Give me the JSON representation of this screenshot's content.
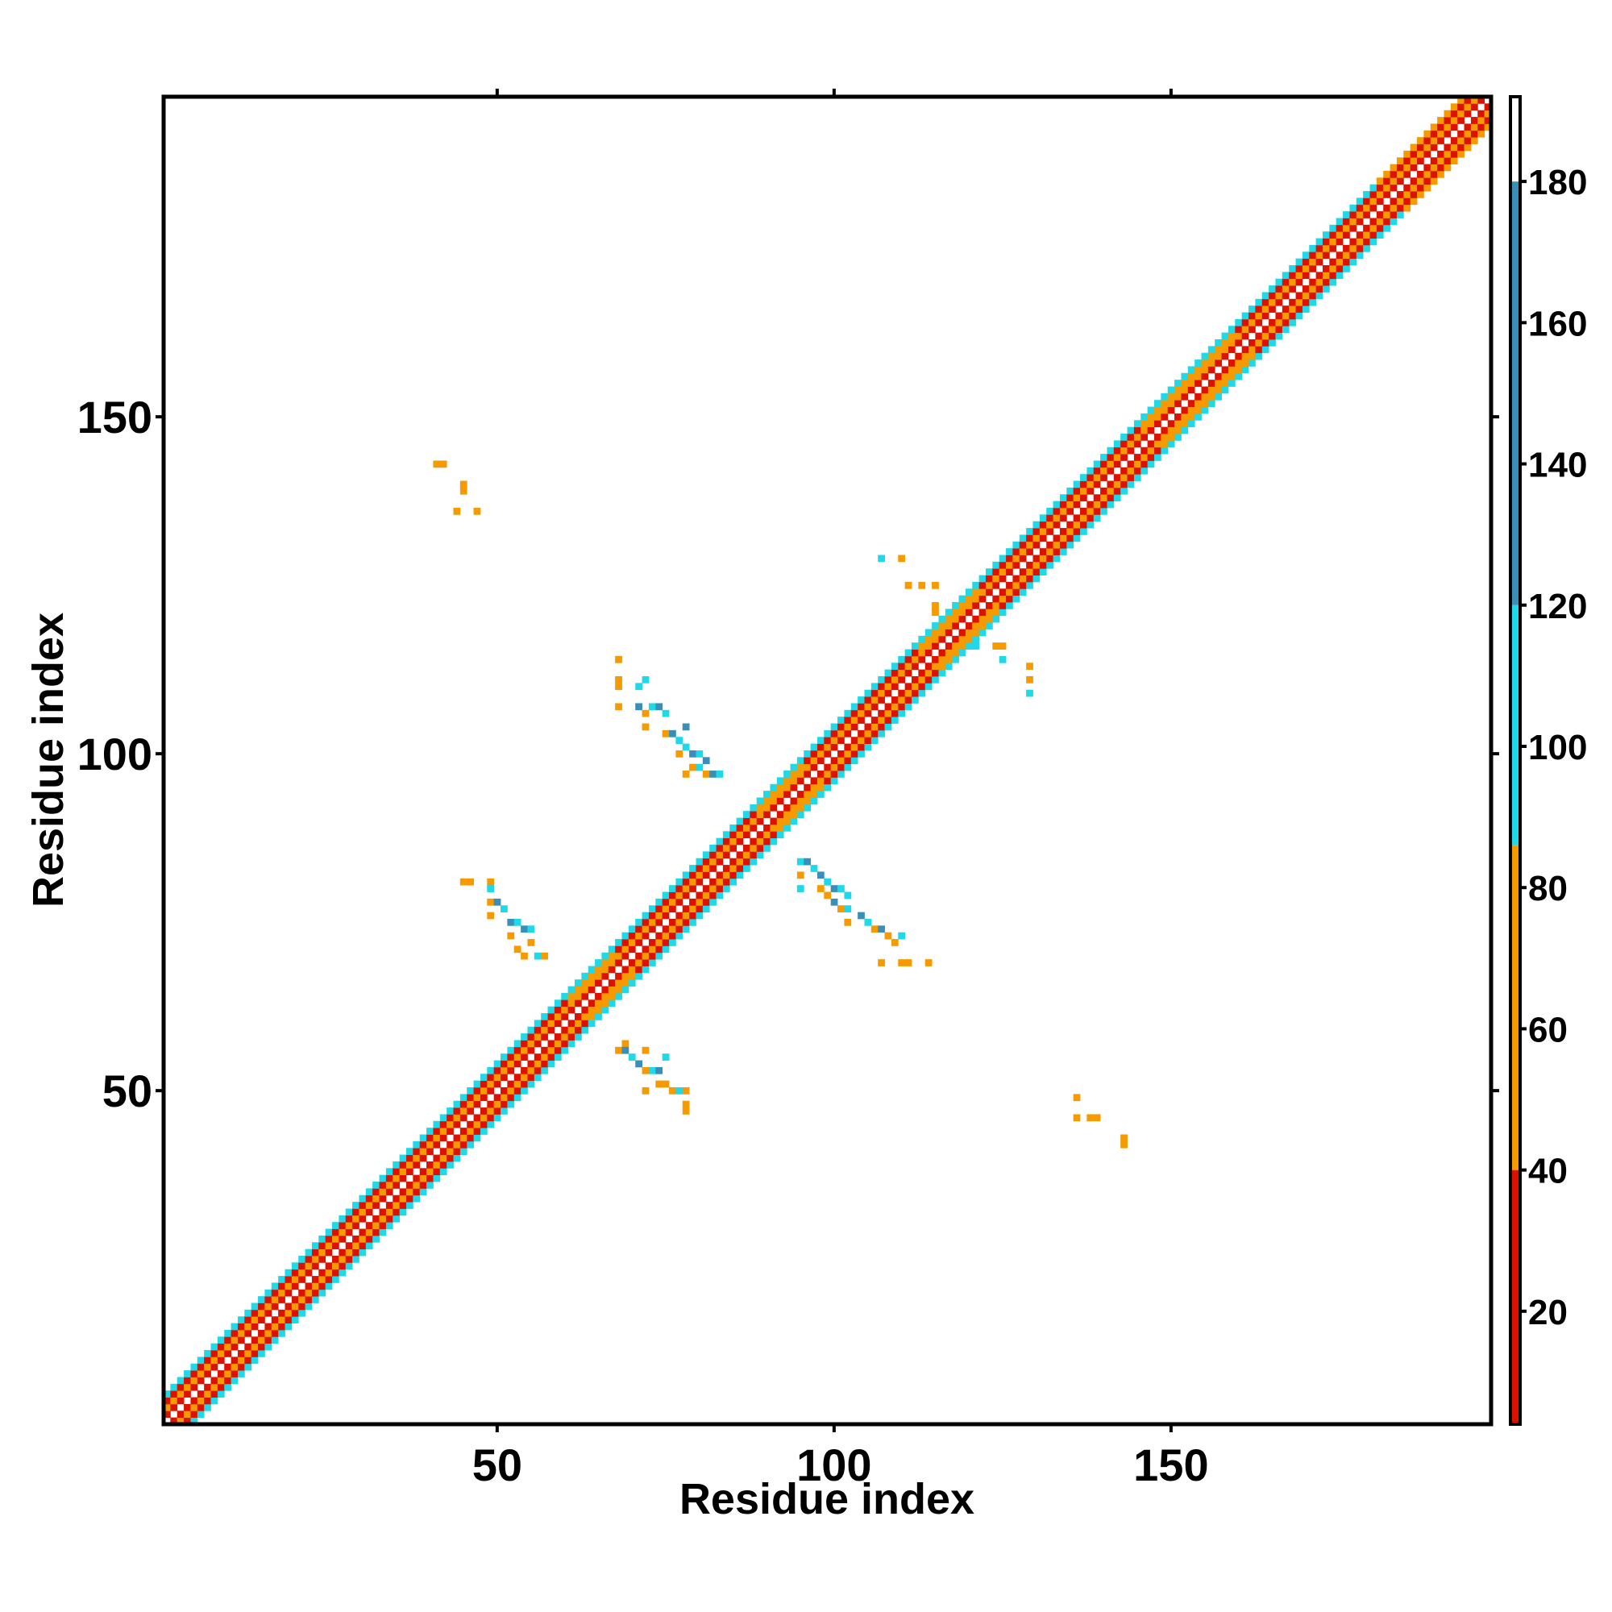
{
  "chart_data": {
    "type": "heatmap",
    "title": "",
    "xlabel": "Residue index",
    "ylabel": "Residue index",
    "xlim": [
      1,
      197
    ],
    "ylim": [
      1,
      197
    ],
    "x_ticks": [
      "50",
      "100",
      "150"
    ],
    "y_ticks": [
      "50",
      "100",
      "150"
    ],
    "colorbar": {
      "ticks": [
        "20",
        "40",
        "60",
        "80",
        "100",
        "120",
        "140",
        "160",
        "180"
      ],
      "range": [
        4,
        192
      ],
      "bands": [
        {
          "from": 4,
          "to": 40,
          "color": "#dd1100"
        },
        {
          "from": 40,
          "to": 86,
          "color": "#f59a00"
        },
        {
          "from": 86,
          "to": 120,
          "color": "#1fd8e8"
        },
        {
          "from": 120,
          "to": 180,
          "color": "#3a8fb8"
        },
        {
          "from": 180,
          "to": 192,
          "color": "#ffffff"
        }
      ]
    },
    "colors": {
      "red": "#dd1100",
      "dark_orange": "#e8650a",
      "orange": "#f59a00",
      "cyan": "#1fd8e8",
      "steel_blue": "#3a8fb8"
    },
    "diagonal_band": {
      "description_cells": "residue pairs with |i-j| from 1 to 4 along the full diagonal",
      "offset_colors": [
        "red",
        "orange",
        "red",
        "cyan"
      ]
    },
    "off_diagonal_contacts": [
      {
        "x": 41,
        "y": 143,
        "c": "orange"
      },
      {
        "x": 42,
        "y": 143,
        "c": "orange"
      },
      {
        "x": 45,
        "y": 140,
        "c": "orange"
      },
      {
        "x": 45,
        "y": 139,
        "c": "orange"
      },
      {
        "x": 44,
        "y": 136,
        "c": "orange"
      },
      {
        "x": 47,
        "y": 136,
        "c": "orange"
      },
      {
        "x": 68,
        "y": 114,
        "c": "orange"
      },
      {
        "x": 68,
        "y": 111,
        "c": "orange"
      },
      {
        "x": 68,
        "y": 110,
        "c": "orange"
      },
      {
        "x": 68,
        "y": 107,
        "c": "orange"
      },
      {
        "x": 71,
        "y": 110,
        "c": "cyan"
      },
      {
        "x": 72,
        "y": 111,
        "c": "cyan"
      },
      {
        "x": 71,
        "y": 107,
        "c": "steel_blue"
      },
      {
        "x": 72,
        "y": 106,
        "c": "orange"
      },
      {
        "x": 73,
        "y": 107,
        "c": "cyan"
      },
      {
        "x": 74,
        "y": 107,
        "c": "steel_blue"
      },
      {
        "x": 75,
        "y": 106,
        "c": "cyan"
      },
      {
        "x": 72,
        "y": 104,
        "c": "orange"
      },
      {
        "x": 75,
        "y": 103,
        "c": "orange"
      },
      {
        "x": 76,
        "y": 103,
        "c": "steel_blue"
      },
      {
        "x": 77,
        "y": 102,
        "c": "cyan"
      },
      {
        "x": 78,
        "y": 104,
        "c": "steel_blue"
      },
      {
        "x": 77,
        "y": 100,
        "c": "orange"
      },
      {
        "x": 78,
        "y": 101,
        "c": "cyan"
      },
      {
        "x": 79,
        "y": 100,
        "c": "steel_blue"
      },
      {
        "x": 80,
        "y": 100,
        "c": "cyan"
      },
      {
        "x": 81,
        "y": 99,
        "c": "steel_blue"
      },
      {
        "x": 79,
        "y": 98,
        "c": "orange"
      },
      {
        "x": 80,
        "y": 98,
        "c": "cyan"
      },
      {
        "x": 81,
        "y": 97,
        "c": "orange"
      },
      {
        "x": 82,
        "y": 97,
        "c": "steel_blue"
      },
      {
        "x": 83,
        "y": 97,
        "c": "cyan"
      },
      {
        "x": 78,
        "y": 97,
        "c": "orange"
      },
      {
        "x": 45,
        "y": 81,
        "c": "orange"
      },
      {
        "x": 46,
        "y": 81,
        "c": "orange"
      },
      {
        "x": 49,
        "y": 81,
        "c": "orange"
      },
      {
        "x": 49,
        "y": 80,
        "c": "cyan"
      },
      {
        "x": 49,
        "y": 78,
        "c": "orange"
      },
      {
        "x": 50,
        "y": 78,
        "c": "steel_blue"
      },
      {
        "x": 51,
        "y": 77,
        "c": "cyan"
      },
      {
        "x": 49,
        "y": 76,
        "c": "orange"
      },
      {
        "x": 52,
        "y": 75,
        "c": "steel_blue"
      },
      {
        "x": 53,
        "y": 75,
        "c": "cyan"
      },
      {
        "x": 54,
        "y": 74,
        "c": "steel_blue"
      },
      {
        "x": 55,
        "y": 74,
        "c": "cyan"
      },
      {
        "x": 52,
        "y": 73,
        "c": "orange"
      },
      {
        "x": 55,
        "y": 72,
        "c": "orange"
      },
      {
        "x": 54,
        "y": 70,
        "c": "orange"
      },
      {
        "x": 56,
        "y": 70,
        "c": "cyan"
      },
      {
        "x": 57,
        "y": 70,
        "c": "orange"
      },
      {
        "x": 53,
        "y": 71,
        "c": "orange"
      },
      {
        "x": 69,
        "y": 57,
        "c": "orange"
      },
      {
        "x": 68,
        "y": 56,
        "c": "orange"
      },
      {
        "x": 69,
        "y": 56,
        "c": "steel_blue"
      },
      {
        "x": 70,
        "y": 55,
        "c": "cyan"
      },
      {
        "x": 72,
        "y": 56,
        "c": "orange"
      },
      {
        "x": 71,
        "y": 54,
        "c": "steel_blue"
      },
      {
        "x": 72,
        "y": 53,
        "c": "orange"
      },
      {
        "x": 73,
        "y": 53,
        "c": "cyan"
      },
      {
        "x": 74,
        "y": 53,
        "c": "steel_blue"
      },
      {
        "x": 74,
        "y": 51,
        "c": "orange"
      },
      {
        "x": 75,
        "y": 51,
        "c": "orange"
      },
      {
        "x": 72,
        "y": 50,
        "c": "orange"
      },
      {
        "x": 76,
        "y": 50,
        "c": "orange"
      },
      {
        "x": 77,
        "y": 50,
        "c": "cyan"
      },
      {
        "x": 78,
        "y": 50,
        "c": "orange"
      },
      {
        "x": 78,
        "y": 48,
        "c": "orange"
      },
      {
        "x": 78,
        "y": 47,
        "c": "orange"
      },
      {
        "x": 75,
        "y": 55,
        "c": "cyan"
      },
      {
        "x": 95,
        "y": 84,
        "c": "cyan"
      },
      {
        "x": 96,
        "y": 84,
        "c": "steel_blue"
      },
      {
        "x": 97,
        "y": 83,
        "c": "cyan"
      },
      {
        "x": 95,
        "y": 82,
        "c": "orange"
      },
      {
        "x": 98,
        "y": 82,
        "c": "steel_blue"
      },
      {
        "x": 99,
        "y": 81,
        "c": "cyan"
      },
      {
        "x": 95,
        "y": 80,
        "c": "cyan"
      },
      {
        "x": 98,
        "y": 80,
        "c": "orange"
      },
      {
        "x": 100,
        "y": 80,
        "c": "steel_blue"
      },
      {
        "x": 101,
        "y": 80,
        "c": "cyan"
      },
      {
        "x": 99,
        "y": 79,
        "c": "orange"
      },
      {
        "x": 102,
        "y": 79,
        "c": "cyan"
      },
      {
        "x": 100,
        "y": 78,
        "c": "steel_blue"
      },
      {
        "x": 101,
        "y": 77,
        "c": "orange"
      },
      {
        "x": 102,
        "y": 77,
        "c": "cyan"
      },
      {
        "x": 104,
        "y": 76,
        "c": "steel_blue"
      },
      {
        "x": 102,
        "y": 75,
        "c": "orange"
      },
      {
        "x": 105,
        "y": 75,
        "c": "cyan"
      },
      {
        "x": 106,
        "y": 74,
        "c": "orange"
      },
      {
        "x": 107,
        "y": 74,
        "c": "steel_blue"
      },
      {
        "x": 108,
        "y": 73,
        "c": "orange"
      },
      {
        "x": 110,
        "y": 73,
        "c": "cyan"
      },
      {
        "x": 109,
        "y": 72,
        "c": "orange"
      },
      {
        "x": 107,
        "y": 69,
        "c": "orange"
      },
      {
        "x": 110,
        "y": 69,
        "c": "orange"
      },
      {
        "x": 111,
        "y": 69,
        "c": "orange"
      },
      {
        "x": 114,
        "y": 69,
        "c": "orange"
      },
      {
        "x": 107,
        "y": 129,
        "c": "cyan"
      },
      {
        "x": 110,
        "y": 129,
        "c": "orange"
      },
      {
        "x": 111,
        "y": 125,
        "c": "orange"
      },
      {
        "x": 113,
        "y": 125,
        "c": "orange"
      },
      {
        "x": 115,
        "y": 125,
        "c": "orange"
      },
      {
        "x": 115,
        "y": 122,
        "c": "orange"
      },
      {
        "x": 115,
        "y": 121,
        "c": "orange"
      },
      {
        "x": 118,
        "y": 116,
        "c": "orange"
      },
      {
        "x": 119,
        "y": 116,
        "c": "orange"
      },
      {
        "x": 121,
        "y": 116,
        "c": "cyan"
      },
      {
        "x": 124,
        "y": 116,
        "c": "orange"
      },
      {
        "x": 125,
        "y": 116,
        "c": "orange"
      },
      {
        "x": 125,
        "y": 114,
        "c": "cyan"
      },
      {
        "x": 129,
        "y": 113,
        "c": "orange"
      },
      {
        "x": 129,
        "y": 111,
        "c": "orange"
      },
      {
        "x": 129,
        "y": 109,
        "c": "cyan"
      },
      {
        "x": 136,
        "y": 49,
        "c": "orange"
      },
      {
        "x": 136,
        "y": 46,
        "c": "orange"
      },
      {
        "x": 138,
        "y": 46,
        "c": "orange"
      },
      {
        "x": 139,
        "y": 46,
        "c": "orange"
      },
      {
        "x": 143,
        "y": 43,
        "c": "orange"
      },
      {
        "x": 143,
        "y": 42,
        "c": "orange"
      }
    ]
  }
}
